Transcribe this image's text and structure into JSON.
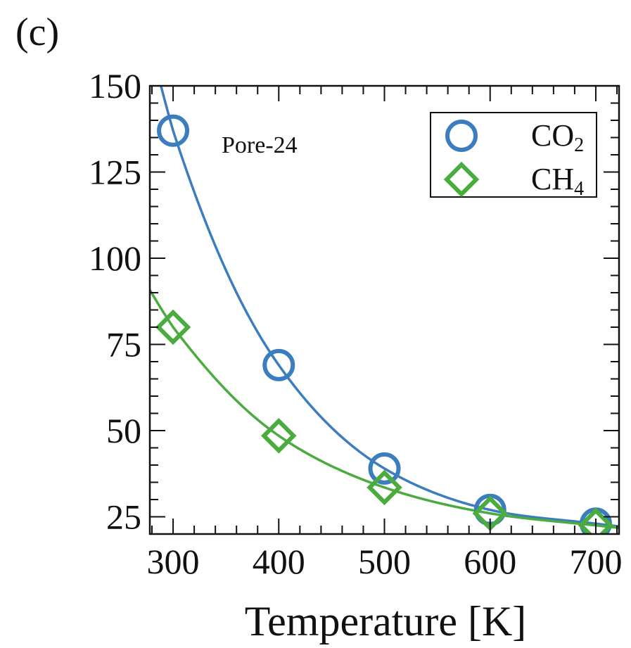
{
  "panel_label": "(c)",
  "chart_data": {
    "type": "scatter",
    "title": "",
    "annotation": "Pore-24",
    "xlabel": "Temperature [K]",
    "ylabel": "",
    "xlim": [
      278,
      722
    ],
    "ylim": [
      20,
      150
    ],
    "xticks": [
      300,
      400,
      500,
      600,
      700
    ],
    "yticks": [
      25,
      50,
      75,
      100,
      125,
      150
    ],
    "grid": false,
    "legend_position": "top-right",
    "series": [
      {
        "name": "CO2",
        "name_main": "CO",
        "name_sub": "2",
        "marker": "circle",
        "color": "#3b7dbf",
        "x": [
          300,
          400,
          500,
          600,
          700
        ],
        "y": [
          137,
          69,
          39,
          27,
          23
        ],
        "fit_curve": true
      },
      {
        "name": "CH4",
        "name_main": "CH",
        "name_sub": "4",
        "marker": "diamond",
        "color": "#4aab3f",
        "x": [
          300,
          400,
          500,
          600,
          700
        ],
        "y": [
          80,
          48.5,
          33.5,
          26,
          22.5
        ],
        "fit_curve": true
      }
    ]
  }
}
